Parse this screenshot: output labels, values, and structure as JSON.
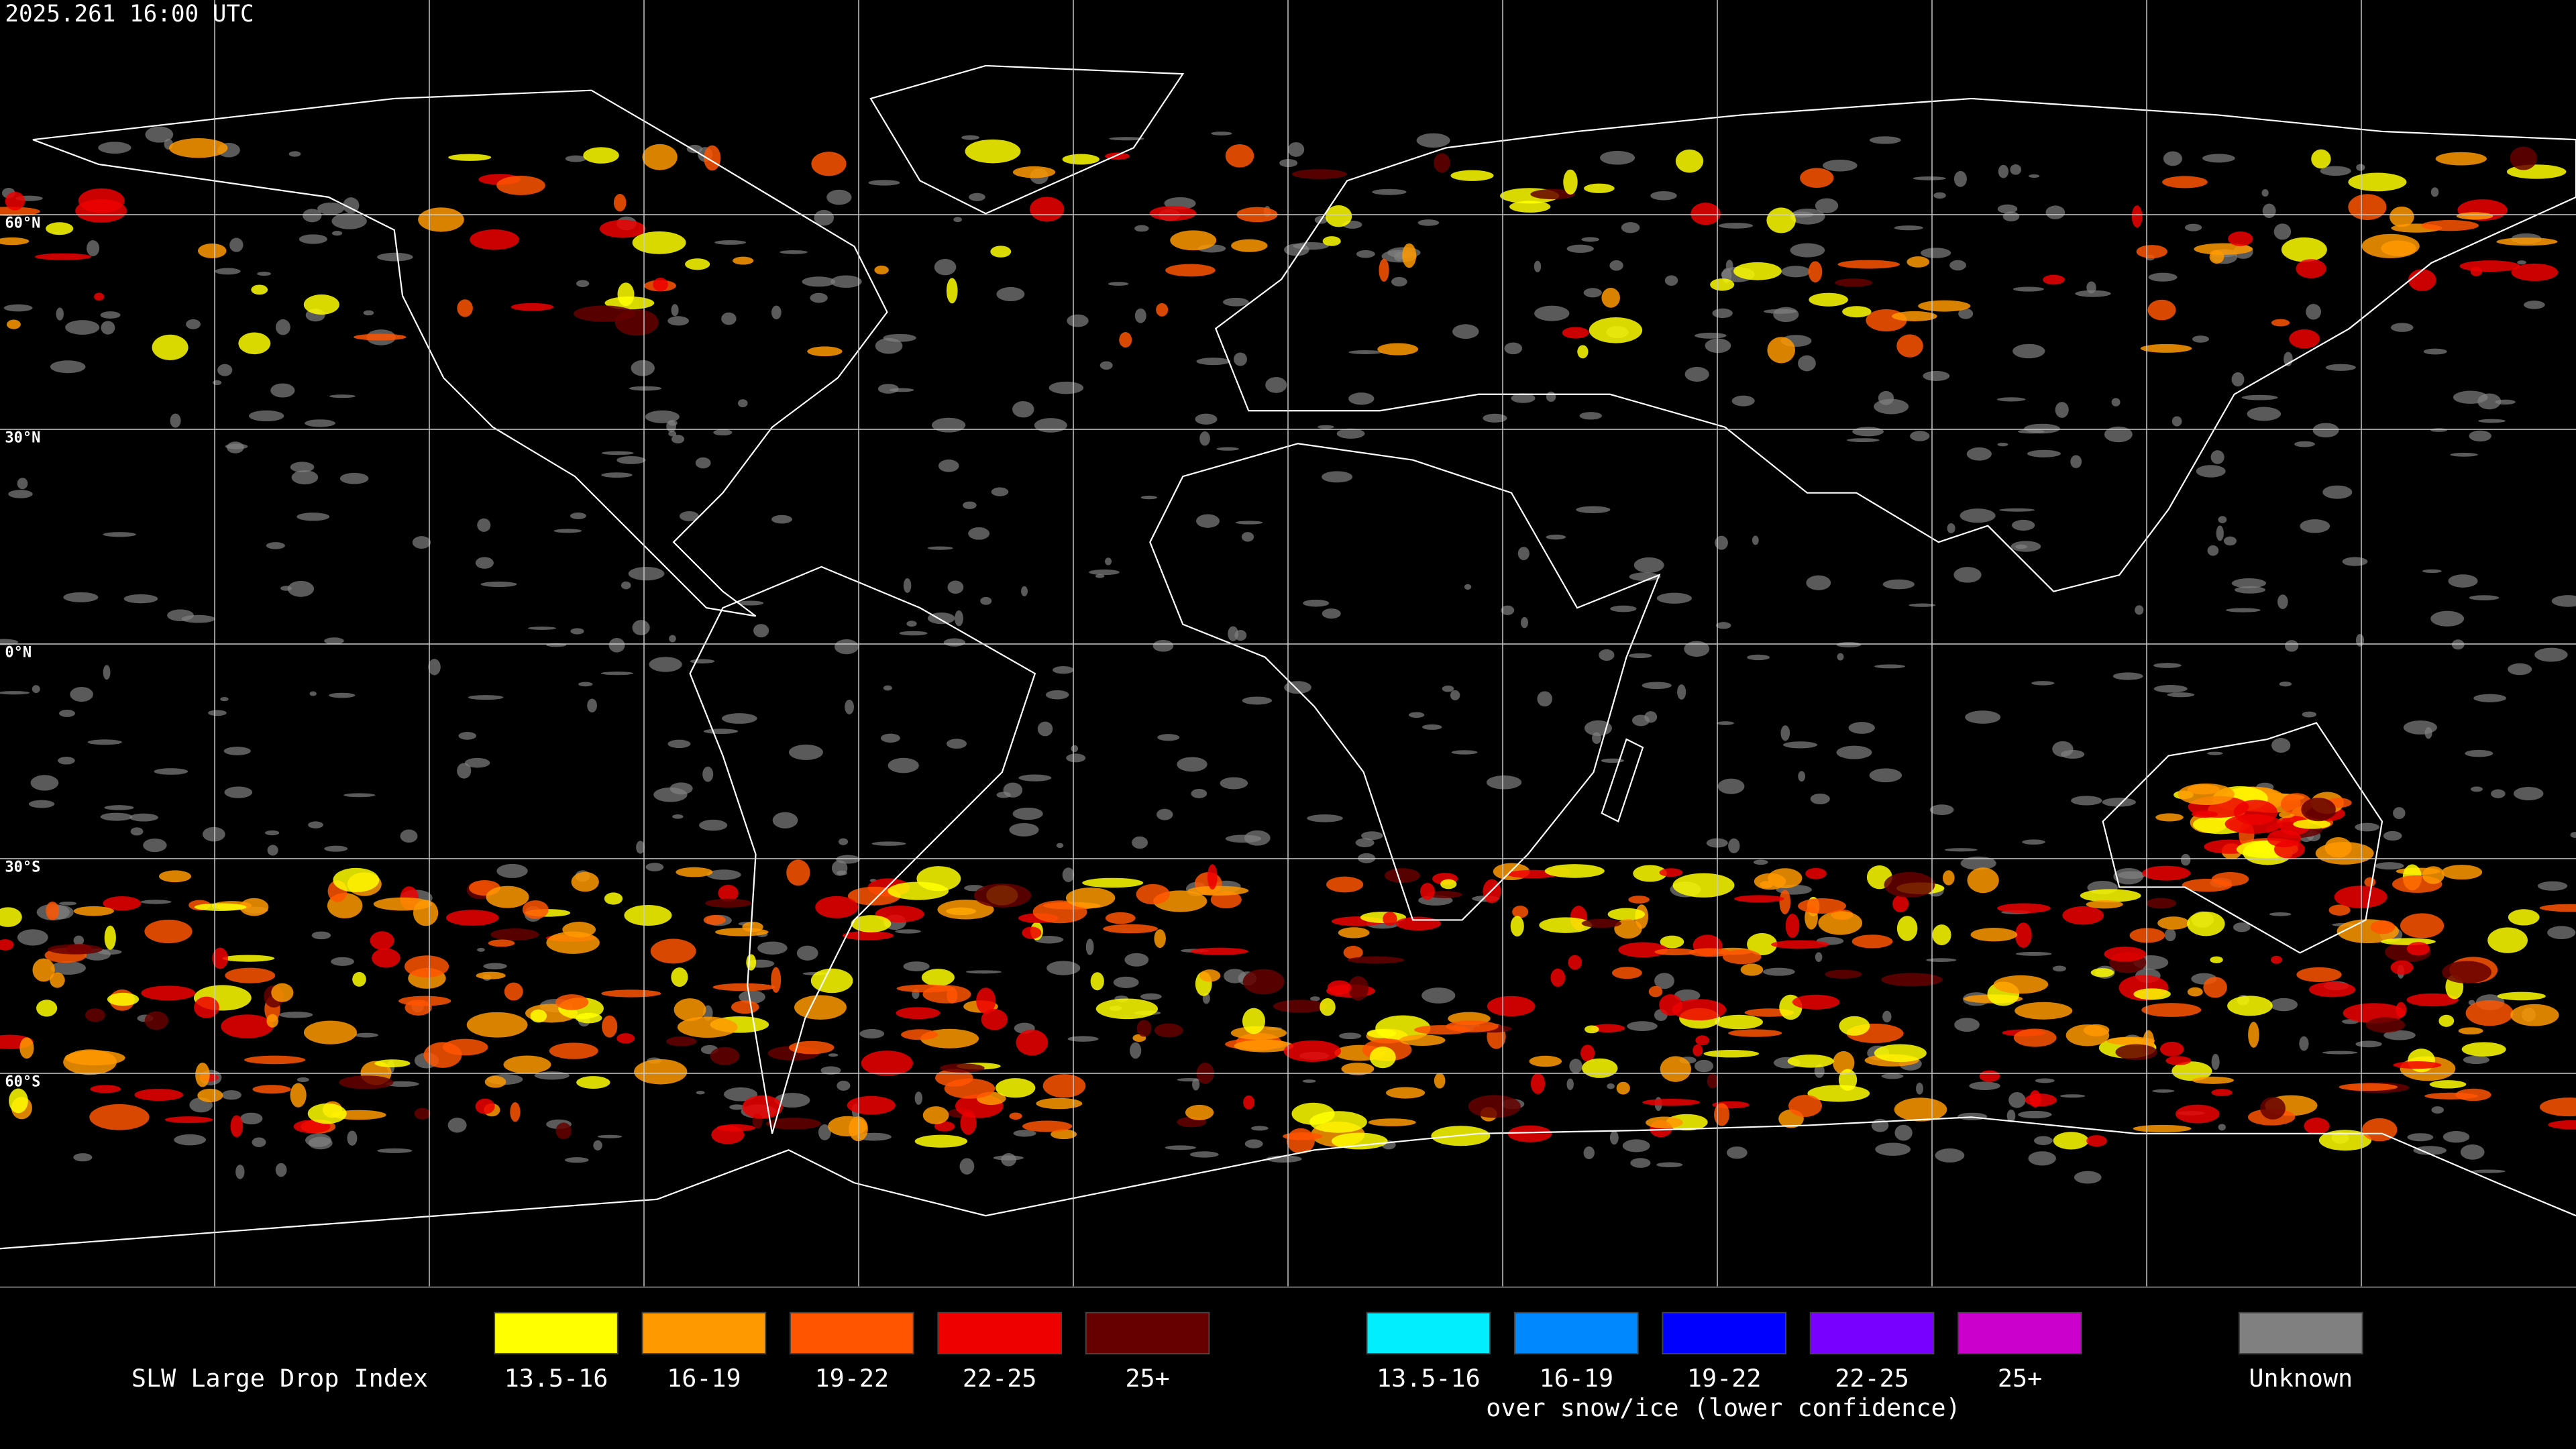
{
  "timestamp": "2025.261 16:00 UTC",
  "latitude_labels": [
    "60°N",
    "30°N",
    "0°N",
    "30°S",
    "60°S"
  ],
  "legend": {
    "title": "SLW Large Drop Index",
    "groups": [
      {
        "items": [
          {
            "label": "13.5-16",
            "color": "#ffff00"
          },
          {
            "label": "16-19",
            "color": "#ff9900"
          },
          {
            "label": "19-22",
            "color": "#ff5500"
          },
          {
            "label": "22-25",
            "color": "#ee0000"
          },
          {
            "label": "25+",
            "color": "#660000"
          }
        ]
      },
      {
        "items": [
          {
            "label": "13.5-16",
            "color": "#00eeff"
          },
          {
            "label": "16-19",
            "color": "#0088ff"
          },
          {
            "label": "19-22",
            "color": "#0000ff"
          },
          {
            "label": "22-25",
            "color": "#7700ff"
          },
          {
            "label": "25+",
            "color": "#cc00cc"
          }
        ],
        "note": "over snow/ice (lower confidence)"
      }
    ],
    "unknown": {
      "label": "Unknown",
      "color": "#808080"
    }
  }
}
